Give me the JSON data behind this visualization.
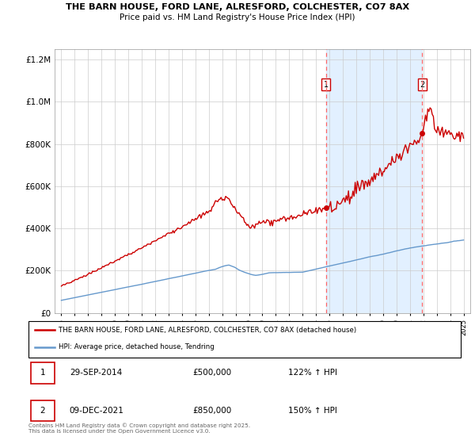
{
  "title1": "THE BARN HOUSE, FORD LANE, ALRESFORD, COLCHESTER, CO7 8AX",
  "title2": "Price paid vs. HM Land Registry's House Price Index (HPI)",
  "red_label": "THE BARN HOUSE, FORD LANE, ALRESFORD, COLCHESTER, CO7 8AX (detached house)",
  "blue_label": "HPI: Average price, detached house, Tendring",
  "annotation1_date": "29-SEP-2014",
  "annotation1_price": "£500,000",
  "annotation1_hpi": "122% ↑ HPI",
  "annotation2_date": "09-DEC-2021",
  "annotation2_price": "£850,000",
  "annotation2_hpi": "150% ↑ HPI",
  "footer": "Contains HM Land Registry data © Crown copyright and database right 2025.\nThis data is licensed under the Open Government Licence v3.0.",
  "vline1_x": 2014.75,
  "vline2_x": 2021.92,
  "point1_x": 2014.75,
  "point1_y": 500000,
  "point2_x": 2021.92,
  "point2_y": 850000,
  "shade_start": 2014.75,
  "shade_end": 2021.92,
  "ylim": [
    0,
    1250000
  ],
  "xlim": [
    1994.5,
    2025.5
  ],
  "red_color": "#cc0000",
  "blue_color": "#6699cc",
  "shade_color": "#ddeeff",
  "grid_color": "#cccccc",
  "background_color": "#ffffff"
}
